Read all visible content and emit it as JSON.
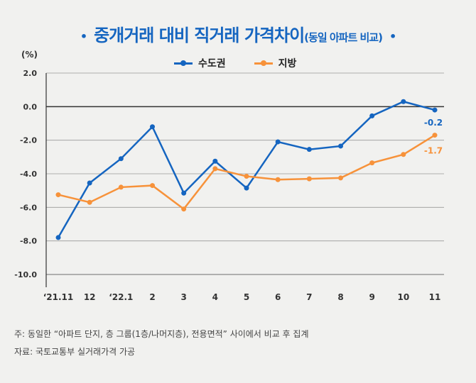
{
  "title": {
    "main": "중개거래 대비 직거래 가격차이",
    "sub": "(동일 아파트 비교)",
    "bullet": "•"
  },
  "notes": {
    "note": "주: 동일한 “아파트 단지, 층 그룹(1층/나머지층), 전용면적” 사이에서 비교 후 집계",
    "source": "자료: 국토교통부 실거래가격 가공"
  },
  "chart_data": {
    "type": "line",
    "ylabel": "(%)",
    "ylim": [
      -10,
      2
    ],
    "yticks": [
      "2.0",
      "0.0",
      "-2.0",
      "-4.0",
      "-6.0",
      "-8.0",
      "-10.0"
    ],
    "ytick_values": [
      2,
      0,
      -2,
      -4,
      -6,
      -8,
      -10
    ],
    "grid": true,
    "legend_position": "top-center",
    "categories": [
      "‘21.11",
      "12",
      "‘22.1",
      "2",
      "3",
      "4",
      "5",
      "6",
      "7",
      "8",
      "9",
      "10",
      "11"
    ],
    "series": [
      {
        "name": "수도권",
        "color": "#1565c0",
        "values": [
          -7.8,
          -4.55,
          -3.1,
          -1.2,
          -5.15,
          -3.25,
          -4.85,
          -2.1,
          -2.55,
          -2.35,
          -0.55,
          0.3,
          -0.2
        ],
        "end_label": "-0.2"
      },
      {
        "name": "지방",
        "color": "#f7923a",
        "values": [
          -5.25,
          -5.7,
          -4.8,
          -4.7,
          -6.1,
          -3.7,
          -4.15,
          -4.35,
          -4.3,
          -4.25,
          -3.35,
          -2.85,
          -1.7
        ],
        "end_label": "-1.7"
      }
    ]
  }
}
